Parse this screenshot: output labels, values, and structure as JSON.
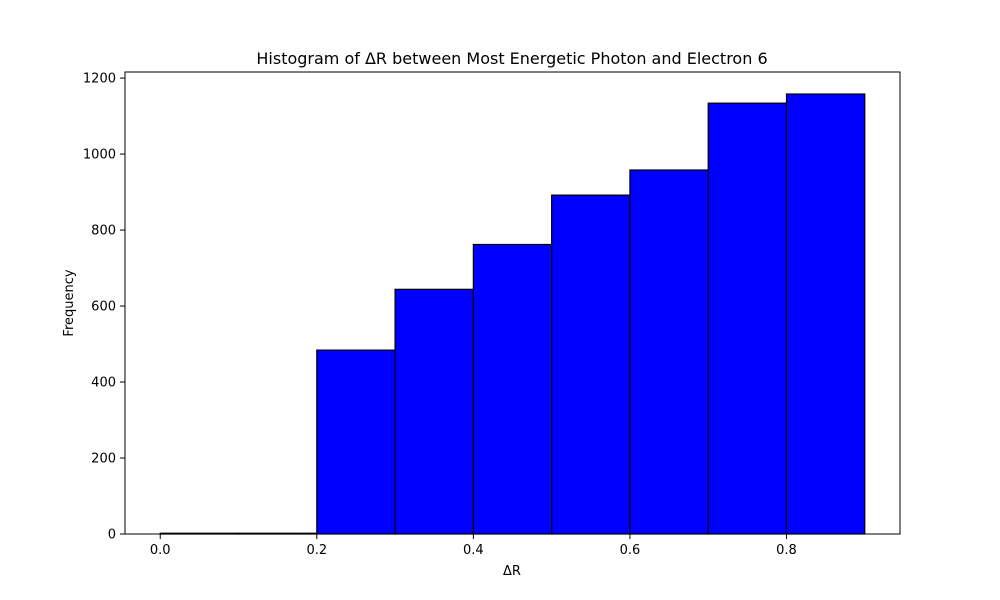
{
  "chart_data": {
    "type": "bar",
    "title": "Histogram of ΔR between Most Energetic Photon and Electron 6",
    "xlabel": "ΔR",
    "ylabel": "Frequency",
    "bins": [
      {
        "x0": 0.0,
        "x1": 0.1,
        "count": 2
      },
      {
        "x0": 0.1,
        "x1": 0.2,
        "count": 2
      },
      {
        "x0": 0.2,
        "x1": 0.3,
        "count": 484
      },
      {
        "x0": 0.3,
        "x1": 0.4,
        "count": 644
      },
      {
        "x0": 0.4,
        "x1": 0.5,
        "count": 762
      },
      {
        "x0": 0.5,
        "x1": 0.6,
        "count": 892
      },
      {
        "x0": 0.6,
        "x1": 0.7,
        "count": 958
      },
      {
        "x0": 0.7,
        "x1": 0.8,
        "count": 1134
      },
      {
        "x0": 0.8,
        "x1": 0.9,
        "count": 1158
      }
    ],
    "xlim": [
      -0.045,
      0.945
    ],
    "ylim": [
      0,
      1216
    ],
    "xticks": [
      {
        "value": 0.0,
        "label": "0.0"
      },
      {
        "value": 0.2,
        "label": "0.2"
      },
      {
        "value": 0.4,
        "label": "0.4"
      },
      {
        "value": 0.6,
        "label": "0.6"
      },
      {
        "value": 0.8,
        "label": "0.8"
      }
    ],
    "yticks": [
      {
        "value": 0,
        "label": "0"
      },
      {
        "value": 200,
        "label": "200"
      },
      {
        "value": 400,
        "label": "400"
      },
      {
        "value": 600,
        "label": "600"
      },
      {
        "value": 800,
        "label": "800"
      },
      {
        "value": 1000,
        "label": "1000"
      },
      {
        "value": 1200,
        "label": "1200"
      }
    ],
    "bar_color": "#0000ff",
    "edge_color": "#000000",
    "grid": false,
    "legend": false
  }
}
